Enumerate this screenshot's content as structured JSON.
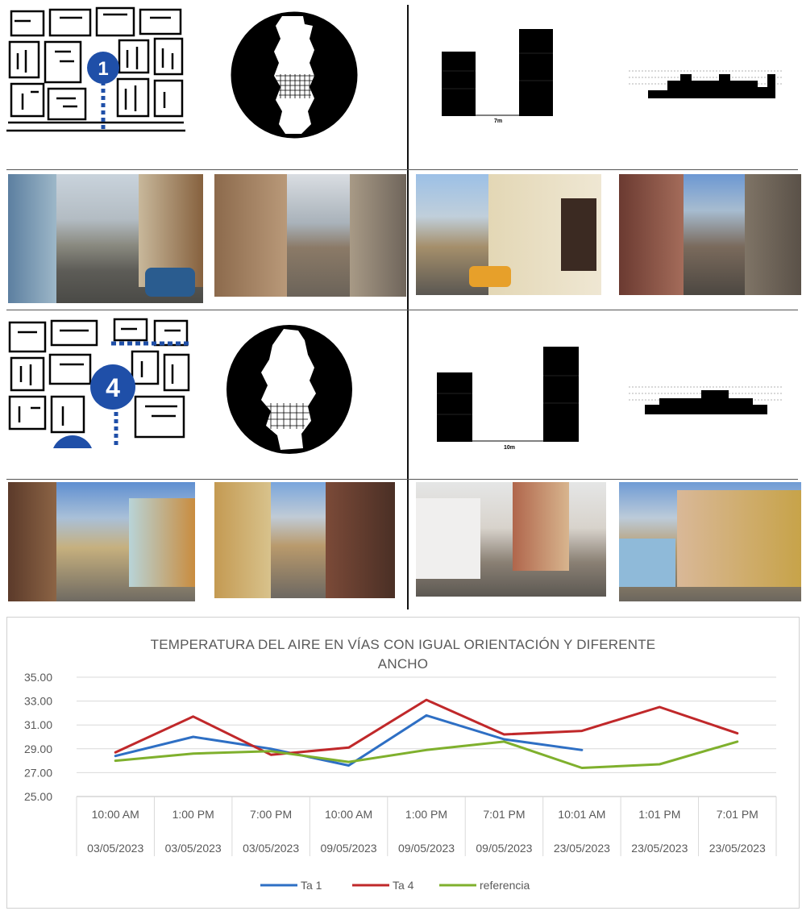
{
  "panels": {
    "site1": {
      "marker": "1",
      "profile_label": "7m"
    },
    "site4": {
      "marker": "4",
      "profile_label": "10m"
    }
  },
  "colors": {
    "ta1": "#2e6fc4",
    "ta4": "#c0282a",
    "referencia": "#7fb02d",
    "marker_blue": "#1f4fa8"
  },
  "chart_data": {
    "type": "line",
    "title": "TEMPERATURA DEL AIRE EN VÍAS CON IGUAL ORIENTACIÓN Y DIFERENTE ANCHO",
    "title_lines": [
      "TEMPERATURA DEL AIRE EN VÍAS CON IGUAL ORIENTACIÓN Y DIFERENTE",
      "ANCHO"
    ],
    "categories": [
      [
        "10:00 AM",
        "03/05/2023"
      ],
      [
        "1:00 PM",
        "03/05/2023"
      ],
      [
        "7:00 PM",
        "03/05/2023"
      ],
      [
        "10:00 AM",
        "09/05/2023"
      ],
      [
        "1:00 PM",
        "09/05/2023"
      ],
      [
        "7:01 PM",
        "09/05/2023"
      ],
      [
        "10:01 AM",
        "23/05/2023"
      ],
      [
        "1:01 PM",
        "23/05/2023"
      ],
      [
        "7:01 PM",
        "23/05/2023"
      ]
    ],
    "series": [
      {
        "name": "Ta 1",
        "color": "#2e6fc4",
        "values": [
          28.4,
          30.0,
          29.0,
          27.6,
          31.8,
          29.8,
          28.9,
          null,
          null
        ]
      },
      {
        "name": "Ta 4",
        "color": "#c0282a",
        "values": [
          28.7,
          31.7,
          28.5,
          29.1,
          33.1,
          30.2,
          30.5,
          32.5,
          30.3
        ]
      },
      {
        "name": "referencia",
        "color": "#7fb02d",
        "values": [
          28.0,
          28.6,
          28.8,
          27.9,
          28.9,
          29.6,
          27.4,
          27.7,
          29.6
        ]
      }
    ],
    "ylim": [
      25.0,
      35.0
    ],
    "yticks": [
      "25.00",
      "27.00",
      "29.00",
      "31.00",
      "33.00",
      "35.00"
    ],
    "grid": true,
    "legend_position": "bottom"
  }
}
